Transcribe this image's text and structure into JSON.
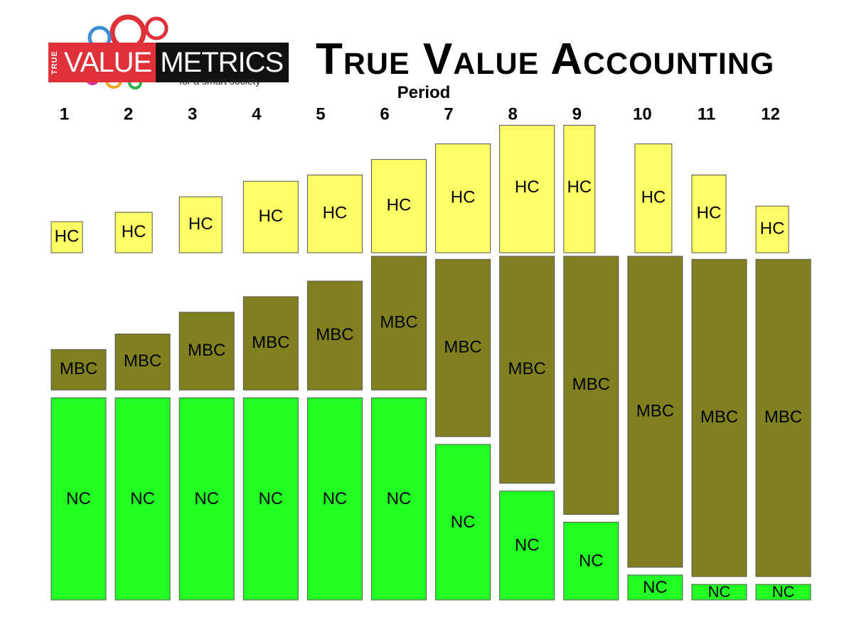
{
  "logo": {
    "true_text": "TRUE",
    "value_text": "VALUE",
    "metrics_text": "METRICS",
    "tagline": "for a smart society"
  },
  "colors": {
    "hc": "#ffff66",
    "mbc": "#808020",
    "nc": "#22ff22",
    "logo_red": "#e0303a",
    "logo_black": "#111111"
  },
  "chart_data": {
    "type": "bar",
    "title": "True Value Accounting",
    "xlabel": "Period",
    "ylabel": "",
    "grid": false,
    "categories": [
      "1",
      "2",
      "3",
      "4",
      "5",
      "6",
      "7",
      "8",
      "9",
      "10",
      "11",
      "12"
    ],
    "series": [
      {
        "name": "HC",
        "values": [
          1.0,
          1.3,
          1.8,
          2.3,
          2.5,
          3.0,
          3.5,
          4.1,
          4.1,
          3.5,
          2.5,
          1.5
        ]
      },
      {
        "name": "MBC",
        "values": [
          1.3,
          1.8,
          2.5,
          3.0,
          3.5,
          4.3,
          5.7,
          7.3,
          8.3,
          10.0,
          10.2,
          10.2
        ]
      },
      {
        "name": "NC",
        "values": [
          6.5,
          6.5,
          6.5,
          6.5,
          6.5,
          6.5,
          5.0,
          3.5,
          2.5,
          0.8,
          0.5,
          0.5
        ]
      }
    ],
    "width_scale": [
      1.0,
      1.0,
      1.0,
      1.0,
      1.0,
      1.0,
      1.0,
      1.0,
      1.0,
      1.0,
      1.0,
      1.0
    ]
  }
}
